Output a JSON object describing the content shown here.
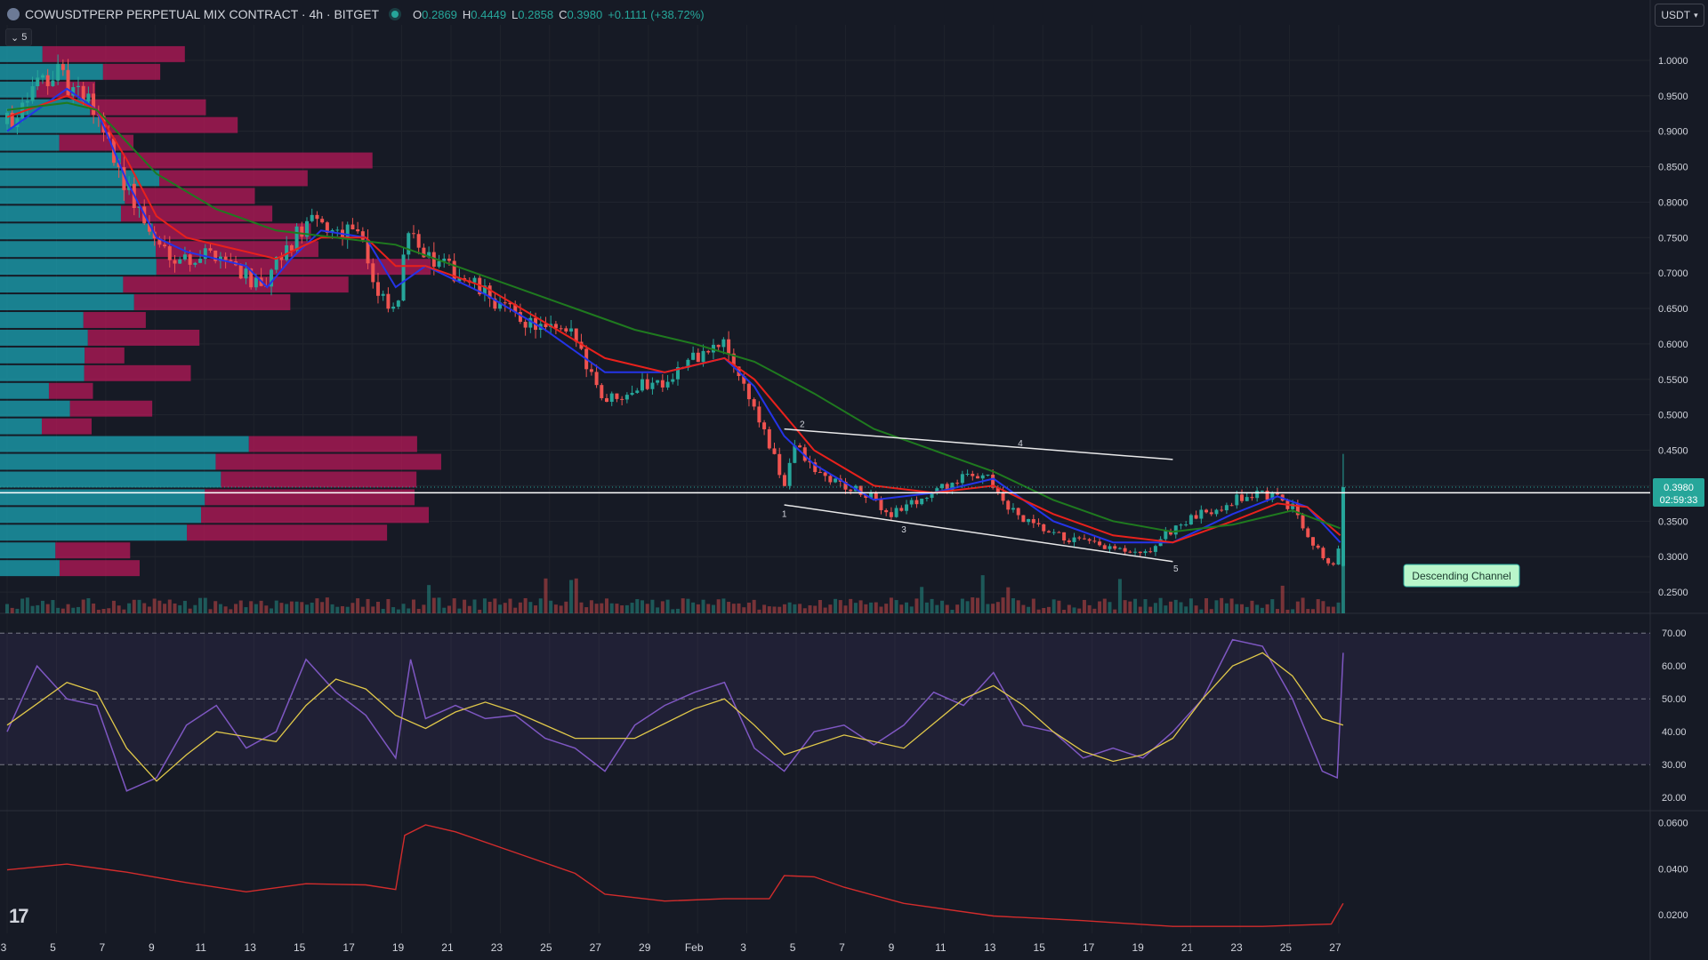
{
  "header": {
    "symbol_title": "COWUSDTPERP PERPETUAL MIX CONTRACT · 4h · BITGET",
    "open_label": "O",
    "open": "0.2869",
    "high_label": "H",
    "high": "0.4449",
    "low_label": "L",
    "low": "0.2858",
    "close_label": "C",
    "close": "0.3980",
    "change": "+0.1111 (+38.72%)"
  },
  "currency_selector": {
    "value": "USDT"
  },
  "collapse_button": {
    "label": "5"
  },
  "price_tag": {
    "price": "0.3980",
    "countdown": "02:59:33"
  },
  "annotation": {
    "label": "Descending Channel"
  },
  "wave_labels": [
    "1",
    "2",
    "3",
    "4",
    "5"
  ],
  "icons": {
    "collapse": "chevron-down-icon",
    "currency": "chevron-down-icon",
    "logo": "tradingview-logo-icon"
  },
  "colors": {
    "background": "#161a25",
    "up": "#26a69a",
    "down": "#ef5350",
    "ema_fast": "#2434e8",
    "ema_mid": "#e8211c",
    "ema_slow": "#1f7a1f",
    "rsi": "#7e57c2",
    "rsi_ma": "#e0c84a",
    "indicator3": "#d22c2c",
    "channel": "#ffffff",
    "vp_up": "#1ba4b4",
    "vp_down": "#c2185b"
  },
  "chart_data": [
    {
      "type": "candlestick",
      "pane": "price",
      "y_ticks": [
        "1.0000",
        "0.9500",
        "0.9000",
        "0.8500",
        "0.8000",
        "0.7500",
        "0.7000",
        "0.6500",
        "0.6000",
        "0.5500",
        "0.5000",
        "0.4500",
        "0.4000",
        "0.3500",
        "0.3000",
        "0.2500"
      ],
      "ylim": [
        0.22,
        1.05
      ],
      "x_ticks": [
        "3",
        "5",
        "7",
        "9",
        "11",
        "13",
        "15",
        "17",
        "19",
        "21",
        "23",
        "25",
        "27",
        "29",
        "Feb",
        "3",
        "5",
        "7",
        "9",
        "11",
        "13",
        "15",
        "17",
        "19",
        "21",
        "23",
        "25",
        "27"
      ],
      "close_path": [
        {
          "x": 0,
          "y": 0.91
        },
        {
          "x": 1.5,
          "y": 0.99
        },
        {
          "x": 2,
          "y": 0.96
        },
        {
          "x": 3,
          "y": 0.93
        },
        {
          "x": 4,
          "y": 0.82
        },
        {
          "x": 5,
          "y": 0.74
        },
        {
          "x": 6,
          "y": 0.72
        },
        {
          "x": 7,
          "y": 0.73
        },
        {
          "x": 8,
          "y": 0.7
        },
        {
          "x": 8.5,
          "y": 0.67
        },
        {
          "x": 9,
          "y": 0.71
        },
        {
          "x": 10,
          "y": 0.77
        },
        {
          "x": 11,
          "y": 0.76
        },
        {
          "x": 11.8,
          "y": 0.77
        },
        {
          "x": 12.3,
          "y": 0.67
        },
        {
          "x": 13,
          "y": 0.64
        },
        {
          "x": 13.5,
          "y": 0.78
        },
        {
          "x": 14,
          "y": 0.72
        },
        {
          "x": 15,
          "y": 0.7
        },
        {
          "x": 16,
          "y": 0.67
        },
        {
          "x": 17,
          "y": 0.64
        },
        {
          "x": 18,
          "y": 0.62
        },
        {
          "x": 19,
          "y": 0.61
        },
        {
          "x": 20,
          "y": 0.52
        },
        {
          "x": 21,
          "y": 0.54
        },
        {
          "x": 22,
          "y": 0.55
        },
        {
          "x": 23,
          "y": 0.58
        },
        {
          "x": 24,
          "y": 0.6
        },
        {
          "x": 25,
          "y": 0.51
        },
        {
          "x": 26,
          "y": 0.4
        },
        {
          "x": 26.3,
          "y": 0.46
        },
        {
          "x": 27,
          "y": 0.42
        },
        {
          "x": 28,
          "y": 0.4
        },
        {
          "x": 29,
          "y": 0.38
        },
        {
          "x": 29.5,
          "y": 0.36
        },
        {
          "x": 30,
          "y": 0.37
        },
        {
          "x": 31,
          "y": 0.39
        },
        {
          "x": 32,
          "y": 0.41
        },
        {
          "x": 32.8,
          "y": 0.42
        },
        {
          "x": 33.2,
          "y": 0.38
        },
        {
          "x": 34,
          "y": 0.35
        },
        {
          "x": 35,
          "y": 0.33
        },
        {
          "x": 36,
          "y": 0.32
        },
        {
          "x": 37,
          "y": 0.31
        },
        {
          "x": 38,
          "y": 0.3
        },
        {
          "x": 39,
          "y": 0.34
        },
        {
          "x": 40,
          "y": 0.36
        },
        {
          "x": 41,
          "y": 0.38
        },
        {
          "x": 42,
          "y": 0.39
        },
        {
          "x": 43,
          "y": 0.37
        },
        {
          "x": 44,
          "y": 0.3
        },
        {
          "x": 44.5,
          "y": 0.287
        },
        {
          "x": 44.7,
          "y": 0.398
        }
      ],
      "moving_averages": [
        {
          "name": "ema_fast",
          "points": [
            {
              "x": 0,
              "y": 0.9
            },
            {
              "x": 2,
              "y": 0.96
            },
            {
              "x": 3,
              "y": 0.93
            },
            {
              "x": 4,
              "y": 0.83
            },
            {
              "x": 5,
              "y": 0.75
            },
            {
              "x": 6,
              "y": 0.73
            },
            {
              "x": 8,
              "y": 0.71
            },
            {
              "x": 8.7,
              "y": 0.68
            },
            {
              "x": 9.5,
              "y": 0.72
            },
            {
              "x": 10.5,
              "y": 0.76
            },
            {
              "x": 12,
              "y": 0.75
            },
            {
              "x": 13,
              "y": 0.68
            },
            {
              "x": 14,
              "y": 0.71
            },
            {
              "x": 16,
              "y": 0.67
            },
            {
              "x": 18,
              "y": 0.62
            },
            {
              "x": 20,
              "y": 0.56
            },
            {
              "x": 22,
              "y": 0.56
            },
            {
              "x": 24,
              "y": 0.58
            },
            {
              "x": 25,
              "y": 0.54
            },
            {
              "x": 26,
              "y": 0.47
            },
            {
              "x": 27,
              "y": 0.43
            },
            {
              "x": 29,
              "y": 0.38
            },
            {
              "x": 31,
              "y": 0.39
            },
            {
              "x": 33,
              "y": 0.41
            },
            {
              "x": 35,
              "y": 0.35
            },
            {
              "x": 37,
              "y": 0.32
            },
            {
              "x": 39,
              "y": 0.32
            },
            {
              "x": 41,
              "y": 0.36
            },
            {
              "x": 42.5,
              "y": 0.385
            },
            {
              "x": 43.5,
              "y": 0.37
            },
            {
              "x": 44.6,
              "y": 0.32
            }
          ]
        },
        {
          "name": "ema_mid",
          "points": [
            {
              "x": 0,
              "y": 0.92
            },
            {
              "x": 2,
              "y": 0.95
            },
            {
              "x": 3,
              "y": 0.93
            },
            {
              "x": 4,
              "y": 0.86
            },
            {
              "x": 5,
              "y": 0.78
            },
            {
              "x": 6,
              "y": 0.75
            },
            {
              "x": 8,
              "y": 0.73
            },
            {
              "x": 9,
              "y": 0.72
            },
            {
              "x": 10.5,
              "y": 0.75
            },
            {
              "x": 12,
              "y": 0.75
            },
            {
              "x": 13,
              "y": 0.71
            },
            {
              "x": 14,
              "y": 0.71
            },
            {
              "x": 16,
              "y": 0.68
            },
            {
              "x": 18,
              "y": 0.63
            },
            {
              "x": 20,
              "y": 0.58
            },
            {
              "x": 22,
              "y": 0.56
            },
            {
              "x": 24,
              "y": 0.58
            },
            {
              "x": 25,
              "y": 0.55
            },
            {
              "x": 26,
              "y": 0.5
            },
            {
              "x": 27,
              "y": 0.45
            },
            {
              "x": 29,
              "y": 0.4
            },
            {
              "x": 31,
              "y": 0.39
            },
            {
              "x": 33,
              "y": 0.4
            },
            {
              "x": 35,
              "y": 0.36
            },
            {
              "x": 37,
              "y": 0.33
            },
            {
              "x": 39,
              "y": 0.32
            },
            {
              "x": 41,
              "y": 0.35
            },
            {
              "x": 42.5,
              "y": 0.375
            },
            {
              "x": 43.5,
              "y": 0.37
            },
            {
              "x": 44.6,
              "y": 0.33
            }
          ]
        },
        {
          "name": "ema_slow",
          "points": [
            {
              "x": 0,
              "y": 0.93
            },
            {
              "x": 2,
              "y": 0.94
            },
            {
              "x": 3,
              "y": 0.93
            },
            {
              "x": 5,
              "y": 0.84
            },
            {
              "x": 7,
              "y": 0.79
            },
            {
              "x": 9,
              "y": 0.76
            },
            {
              "x": 11,
              "y": 0.75
            },
            {
              "x": 13,
              "y": 0.74
            },
            {
              "x": 15,
              "y": 0.71
            },
            {
              "x": 17,
              "y": 0.68
            },
            {
              "x": 19,
              "y": 0.65
            },
            {
              "x": 21,
              "y": 0.62
            },
            {
              "x": 23,
              "y": 0.6
            },
            {
              "x": 25,
              "y": 0.575
            },
            {
              "x": 27,
              "y": 0.53
            },
            {
              "x": 29,
              "y": 0.48
            },
            {
              "x": 31,
              "y": 0.45
            },
            {
              "x": 33,
              "y": 0.42
            },
            {
              "x": 35,
              "y": 0.38
            },
            {
              "x": 37,
              "y": 0.35
            },
            {
              "x": 39,
              "y": 0.335
            },
            {
              "x": 41,
              "y": 0.345
            },
            {
              "x": 43,
              "y": 0.365
            },
            {
              "x": 44.6,
              "y": 0.34
            }
          ]
        }
      ],
      "channel_lines": [
        {
          "x1": 26,
          "y1": 0.48,
          "x2": 39,
          "y2": 0.437
        },
        {
          "x1": 26,
          "y1": 0.373,
          "x2": 39,
          "y2": 0.293
        }
      ],
      "wave_points": [
        {
          "label": "1",
          "x": 26,
          "y": 0.371
        },
        {
          "label": "2",
          "x": 26.6,
          "y": 0.479
        },
        {
          "label": "3",
          "x": 30,
          "y": 0.349
        },
        {
          "label": "4",
          "x": 33.9,
          "y": 0.452
        },
        {
          "label": "5",
          "x": 39.1,
          "y": 0.294
        }
      ],
      "horizontal_line": 0.39
    },
    {
      "type": "line",
      "pane": "rsi",
      "y_ticks": [
        "70.00",
        "60.00",
        "50.00",
        "40.00",
        "30.00",
        "20.00"
      ],
      "ylim": [
        16,
        76
      ],
      "bands": [
        30,
        50,
        70
      ],
      "rsi": [
        {
          "x": 0,
          "y": 40
        },
        {
          "x": 1,
          "y": 60
        },
        {
          "x": 2,
          "y": 50
        },
        {
          "x": 3,
          "y": 48
        },
        {
          "x": 4,
          "y": 22
        },
        {
          "x": 5,
          "y": 26
        },
        {
          "x": 6,
          "y": 42
        },
        {
          "x": 7,
          "y": 48
        },
        {
          "x": 8,
          "y": 35
        },
        {
          "x": 9,
          "y": 40
        },
        {
          "x": 10,
          "y": 62
        },
        {
          "x": 11,
          "y": 52
        },
        {
          "x": 12,
          "y": 45
        },
        {
          "x": 13,
          "y": 32
        },
        {
          "x": 13.5,
          "y": 62
        },
        {
          "x": 14,
          "y": 44
        },
        {
          "x": 15,
          "y": 48
        },
        {
          "x": 16,
          "y": 44
        },
        {
          "x": 17,
          "y": 45
        },
        {
          "x": 18,
          "y": 38
        },
        {
          "x": 19,
          "y": 35
        },
        {
          "x": 20,
          "y": 28
        },
        {
          "x": 21,
          "y": 42
        },
        {
          "x": 22,
          "y": 48
        },
        {
          "x": 23,
          "y": 52
        },
        {
          "x": 24,
          "y": 55
        },
        {
          "x": 25,
          "y": 35
        },
        {
          "x": 26,
          "y": 28
        },
        {
          "x": 27,
          "y": 40
        },
        {
          "x": 28,
          "y": 42
        },
        {
          "x": 29,
          "y": 36
        },
        {
          "x": 30,
          "y": 42
        },
        {
          "x": 31,
          "y": 52
        },
        {
          "x": 32,
          "y": 48
        },
        {
          "x": 33,
          "y": 58
        },
        {
          "x": 34,
          "y": 42
        },
        {
          "x": 35,
          "y": 40
        },
        {
          "x": 36,
          "y": 32
        },
        {
          "x": 37,
          "y": 35
        },
        {
          "x": 38,
          "y": 32
        },
        {
          "x": 39,
          "y": 40
        },
        {
          "x": 40,
          "y": 50
        },
        {
          "x": 41,
          "y": 68
        },
        {
          "x": 42,
          "y": 66
        },
        {
          "x": 43,
          "y": 50
        },
        {
          "x": 44,
          "y": 28
        },
        {
          "x": 44.5,
          "y": 26
        },
        {
          "x": 44.7,
          "y": 64
        }
      ],
      "rsi_ma": [
        {
          "x": 0,
          "y": 42
        },
        {
          "x": 2,
          "y": 55
        },
        {
          "x": 3,
          "y": 52
        },
        {
          "x": 4,
          "y": 35
        },
        {
          "x": 5,
          "y": 25
        },
        {
          "x": 6,
          "y": 33
        },
        {
          "x": 7,
          "y": 40
        },
        {
          "x": 9,
          "y": 37
        },
        {
          "x": 10,
          "y": 48
        },
        {
          "x": 11,
          "y": 56
        },
        {
          "x": 12,
          "y": 53
        },
        {
          "x": 13,
          "y": 45
        },
        {
          "x": 14,
          "y": 41
        },
        {
          "x": 15,
          "y": 46
        },
        {
          "x": 16,
          "y": 49
        },
        {
          "x": 17,
          "y": 46
        },
        {
          "x": 19,
          "y": 38
        },
        {
          "x": 21,
          "y": 38
        },
        {
          "x": 23,
          "y": 47
        },
        {
          "x": 24,
          "y": 50
        },
        {
          "x": 25,
          "y": 42
        },
        {
          "x": 26,
          "y": 33
        },
        {
          "x": 28,
          "y": 39
        },
        {
          "x": 29,
          "y": 37
        },
        {
          "x": 30,
          "y": 35
        },
        {
          "x": 32,
          "y": 50
        },
        {
          "x": 33,
          "y": 54
        },
        {
          "x": 34,
          "y": 48
        },
        {
          "x": 35,
          "y": 40
        },
        {
          "x": 36,
          "y": 34
        },
        {
          "x": 37,
          "y": 31
        },
        {
          "x": 38,
          "y": 33
        },
        {
          "x": 39,
          "y": 38
        },
        {
          "x": 40,
          "y": 50
        },
        {
          "x": 41,
          "y": 60
        },
        {
          "x": 42,
          "y": 64
        },
        {
          "x": 43,
          "y": 57
        },
        {
          "x": 44,
          "y": 44
        },
        {
          "x": 44.7,
          "y": 42
        }
      ]
    },
    {
      "type": "line",
      "pane": "indicator",
      "y_ticks": [
        "0.0600",
        "0.0400",
        "0.0200"
      ],
      "ylim": [
        0.012,
        0.064
      ],
      "values": [
        {
          "x": 0,
          "y": 0.0395
        },
        {
          "x": 2,
          "y": 0.042
        },
        {
          "x": 4,
          "y": 0.0385
        },
        {
          "x": 6,
          "y": 0.034
        },
        {
          "x": 8,
          "y": 0.03
        },
        {
          "x": 10,
          "y": 0.0335
        },
        {
          "x": 12,
          "y": 0.033
        },
        {
          "x": 13,
          "y": 0.031
        },
        {
          "x": 13.3,
          "y": 0.0545
        },
        {
          "x": 14,
          "y": 0.059
        },
        {
          "x": 15,
          "y": 0.056
        },
        {
          "x": 17,
          "y": 0.047
        },
        {
          "x": 19,
          "y": 0.038
        },
        {
          "x": 20,
          "y": 0.029
        },
        {
          "x": 22,
          "y": 0.026
        },
        {
          "x": 24,
          "y": 0.027
        },
        {
          "x": 25.5,
          "y": 0.027
        },
        {
          "x": 26,
          "y": 0.037
        },
        {
          "x": 27,
          "y": 0.0365
        },
        {
          "x": 28,
          "y": 0.032
        },
        {
          "x": 30,
          "y": 0.025
        },
        {
          "x": 33,
          "y": 0.0195
        },
        {
          "x": 36,
          "y": 0.0175
        },
        {
          "x": 39,
          "y": 0.015
        },
        {
          "x": 42,
          "y": 0.015
        },
        {
          "x": 44.3,
          "y": 0.016
        },
        {
          "x": 44.7,
          "y": 0.025
        }
      ]
    }
  ]
}
